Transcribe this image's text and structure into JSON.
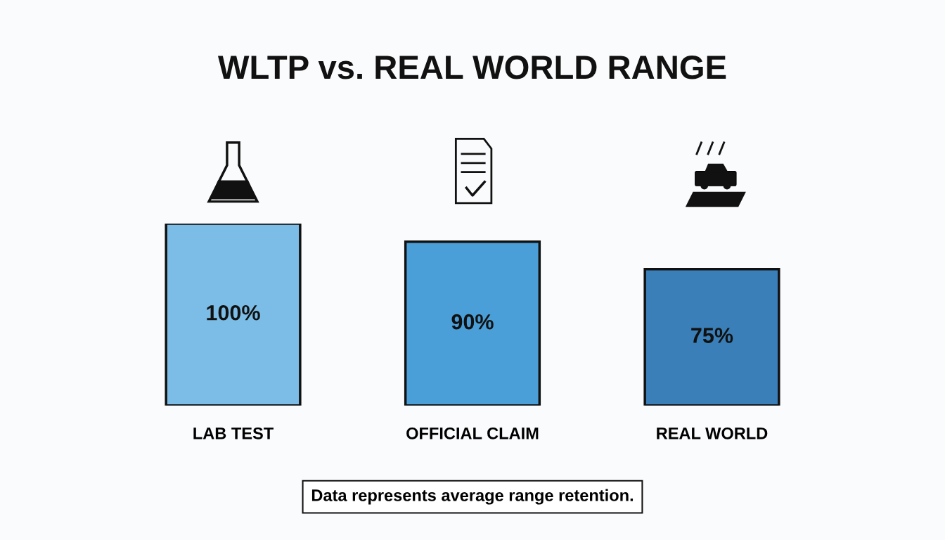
{
  "chart_data": {
    "type": "bar",
    "title": "WLTP vs. REAL WORLD RANGE",
    "categories": [
      "LAB TEST",
      "OFFICIAL CLAIM",
      "REAL WORLD"
    ],
    "values": [
      100,
      90,
      75
    ],
    "colors": [
      "#7bbde6",
      "#4a9fd8",
      "#3a7fb8"
    ],
    "value_labels": [
      "100%",
      "90%",
      "75%"
    ],
    "annotations": [
      "Data represents average range retention."
    ]
  }
}
